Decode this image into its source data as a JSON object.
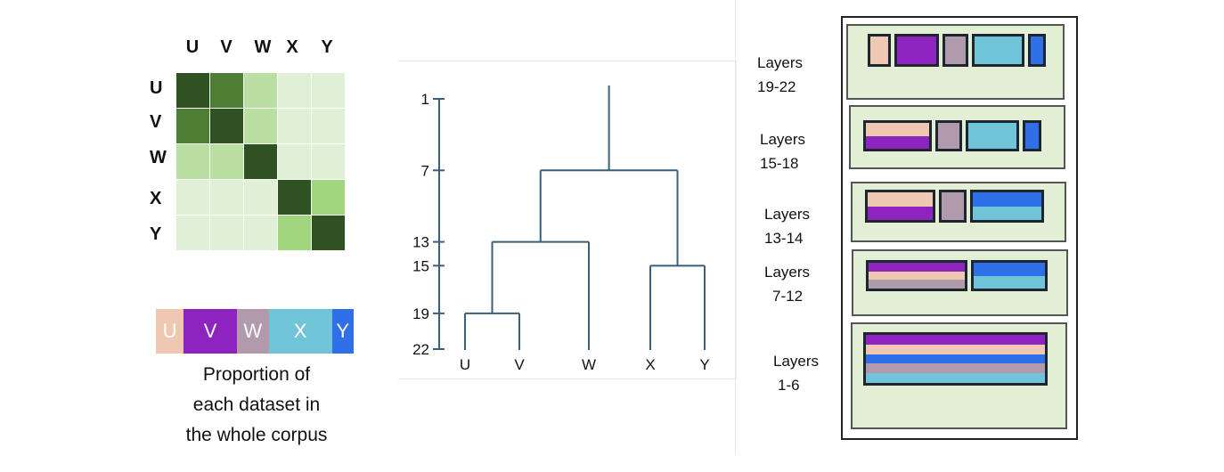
{
  "datasets": [
    "U",
    "V",
    "W",
    "X",
    "Y"
  ],
  "colors": {
    "U": "#eec8b0",
    "V": "#8e24c0",
    "W": "#b09aac",
    "X": "#70c4d8",
    "Y": "#2f6fe8"
  },
  "similarity_matrix": {
    "levels": [
      [
        4,
        3,
        2,
        1,
        1
      ],
      [
        3,
        4,
        2,
        1,
        1
      ],
      [
        2,
        2,
        4,
        1,
        1
      ],
      [
        1,
        1,
        1,
        4,
        2.5
      ],
      [
        1,
        1,
        1,
        2.5,
        4
      ]
    ],
    "level_colors": {
      "1": "#dff0d6",
      "2": "#b9e0a2",
      "2.5": "#a2d67e",
      "3": "#4e7d34",
      "4": "#2f5223"
    }
  },
  "proportion": {
    "values": {
      "U": 14,
      "V": 27,
      "W": 16,
      "X": 32,
      "Y": 11
    },
    "caption": [
      "Proportion of",
      "each dataset in",
      "the whole corpus"
    ]
  },
  "dendrogram": {
    "axis_ticks": [
      "1",
      "7",
      "13",
      "15",
      "19",
      "22"
    ],
    "tick_values": [
      1,
      7,
      13,
      15,
      19,
      22
    ],
    "leaves": [
      "U",
      "V",
      "W",
      "X",
      "Y"
    ],
    "merges": [
      {
        "children": [
          "U",
          "V"
        ],
        "layer": 19
      },
      {
        "children": [
          "UV",
          "W"
        ],
        "layer": 13
      },
      {
        "children": [
          "X",
          "Y"
        ],
        "layer": 15
      },
      {
        "children": [
          "UVW",
          "XY"
        ],
        "layer": 7
      }
    ],
    "root_top_layer": 0
  },
  "layers": [
    {
      "label": [
        "Layers",
        "19-22"
      ],
      "boxes": [
        [
          "U"
        ],
        [
          "V"
        ],
        [
          "W"
        ],
        [
          "X"
        ],
        [
          "Y"
        ]
      ]
    },
    {
      "label": [
        "Layers",
        "15-18"
      ],
      "boxes": [
        [
          "U",
          "V"
        ],
        [
          "W"
        ],
        [
          "X"
        ],
        [
          "Y"
        ]
      ]
    },
    {
      "label": [
        "Layers",
        "13-14"
      ],
      "boxes": [
        [
          "U",
          "V"
        ],
        [
          "W"
        ],
        [
          "Y",
          "X"
        ]
      ]
    },
    {
      "label": [
        "Layers",
        "7-12"
      ],
      "boxes": [
        [
          "V",
          "U",
          "W"
        ],
        [
          "Y",
          "X"
        ]
      ]
    },
    {
      "label": [
        "Layers",
        "1-6"
      ],
      "boxes": [
        [
          "V",
          "U",
          "Y",
          "W",
          "X"
        ]
      ]
    }
  ]
}
